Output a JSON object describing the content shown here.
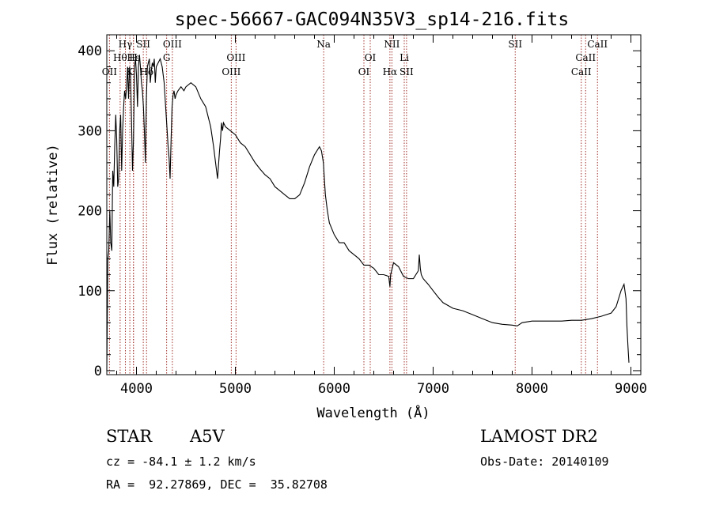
{
  "chart_data": {
    "type": "line",
    "title": "spec-56667-GAC094N35V3_sp14-216.fits",
    "xlabel": "Wavelength (Å)",
    "ylabel": "Flux (relative)",
    "xlim": [
      3700,
      9100
    ],
    "ylim": [
      -5,
      420
    ],
    "xticks": [
      4000,
      5000,
      6000,
      7000,
      8000,
      9000
    ],
    "yticks": [
      0,
      100,
      200,
      300,
      400
    ],
    "grid": false,
    "line_color": "#000000",
    "marker_color": "#a0302a",
    "series": [
      {
        "x": [
          3700,
          3710,
          3720,
          3730,
          3740,
          3750,
          3760,
          3770,
          3780,
          3790,
          3800,
          3810,
          3820,
          3830,
          3840,
          3850,
          3860,
          3870,
          3880,
          3890,
          3900,
          3910,
          3920,
          3930,
          3940,
          3950,
          3960,
          3970,
          3980,
          3990,
          4000,
          4010,
          4020,
          4030,
          4040,
          4050,
          4060,
          4070,
          4080,
          4090,
          4100,
          4110,
          4120,
          4130,
          4140,
          4150,
          4160,
          4170,
          4180,
          4190,
          4200,
          4220,
          4240,
          4260,
          4280,
          4300,
          4310,
          4320,
          4330,
          4340,
          4350,
          4360,
          4370,
          4380,
          4390,
          4400,
          4420,
          4450,
          4480,
          4500,
          4550,
          4600,
          4650,
          4700,
          4720,
          4750,
          4780,
          4800,
          4820,
          4840,
          4850,
          4855,
          4861,
          4865,
          4870,
          4880,
          4900,
          4950,
          5000,
          5050,
          5100,
          5150,
          5200,
          5250,
          5300,
          5350,
          5400,
          5450,
          5500,
          5550,
          5600,
          5650,
          5700,
          5750,
          5800,
          5850,
          5870,
          5890,
          5900,
          5910,
          5930,
          5950,
          6000,
          6050,
          6100,
          6150,
          6200,
          6250,
          6300,
          6350,
          6400,
          6450,
          6500,
          6550,
          6563,
          6570,
          6600,
          6650,
          6700,
          6750,
          6800,
          6850,
          6860,
          6870,
          6880,
          6900,
          6950,
          7000,
          7050,
          7100,
          7200,
          7300,
          7400,
          7500,
          7600,
          7700,
          7800,
          7850,
          7900,
          8000,
          8100,
          8200,
          8300,
          8400,
          8500,
          8600,
          8700,
          8800,
          8850,
          8900,
          8930,
          8950,
          8960,
          8970,
          8980
        ],
        "y": [
          0,
          140,
          150,
          200,
          160,
          150,
          250,
          230,
          280,
          320,
          290,
          230,
          240,
          300,
          320,
          250,
          300,
          330,
          350,
          340,
          355,
          380,
          340,
          380,
          370,
          310,
          250,
          290,
          380,
          390,
          370,
          330,
          380,
          395,
          380,
          360,
          350,
          330,
          300,
          260,
          340,
          380,
          385,
          390,
          360,
          375,
          385,
          380,
          390,
          360,
          380,
          385,
          390,
          380,
          360,
          320,
          300,
          280,
          265,
          240,
          290,
          330,
          345,
          350,
          340,
          345,
          350,
          355,
          350,
          355,
          360,
          355,
          340,
          330,
          320,
          305,
          280,
          260,
          240,
          275,
          290,
          300,
          310,
          305,
          300,
          310,
          305,
          300,
          295,
          285,
          280,
          270,
          260,
          252,
          245,
          240,
          230,
          225,
          220,
          215,
          215,
          220,
          235,
          255,
          270,
          280,
          275,
          260,
          240,
          220,
          200,
          185,
          170,
          160,
          160,
          150,
          145,
          140,
          132,
          132,
          128,
          120,
          120,
          118,
          105,
          120,
          135,
          130,
          118,
          115,
          115,
          125,
          145,
          128,
          120,
          115,
          108,
          100,
          92,
          85,
          78,
          75,
          70,
          65,
          60,
          58,
          57,
          56,
          60,
          62,
          62,
          62,
          62,
          63,
          63,
          65,
          68,
          72,
          80,
          100,
          108,
          90,
          55,
          30,
          10
        ]
      }
    ],
    "spectral_lines": [
      {
        "label": "Hγ",
        "x": 3888,
        "row": 0
      },
      {
        "label": "Hθ",
        "x": 3835,
        "row": 1
      },
      {
        "label": "OII",
        "x": 3727,
        "row": 2
      },
      {
        "label": "K",
        "x": 3933,
        "row": 2
      },
      {
        "label": "SII",
        "x": 4069,
        "row": 0
      },
      {
        "label": "H",
        "x": 3969,
        "row": 1
      },
      {
        "label": "Hδ",
        "x": 4102,
        "row": 2
      },
      {
        "label": "Hε",
        "x": 3970,
        "row": 1
      },
      {
        "label": "OIII",
        "x": 4363,
        "row": 0
      },
      {
        "label": "G",
        "x": 4305,
        "row": 1
      },
      {
        "label": "OIII",
        "x": 5007,
        "row": 1
      },
      {
        "label": "OIII",
        "x": 4959,
        "row": 2
      },
      {
        "label": "Na",
        "x": 5893,
        "row": 0
      },
      {
        "label": "OI",
        "x": 6364,
        "row": 1
      },
      {
        "label": "OI",
        "x": 6300,
        "row": 2
      },
      {
        "label": "NII",
        "x": 6583,
        "row": 0
      },
      {
        "label": "Hα",
        "x": 6563,
        "row": 2
      },
      {
        "label": "Li",
        "x": 6708,
        "row": 1
      },
      {
        "label": "SII",
        "x": 6731,
        "row": 2
      },
      {
        "label": "SII",
        "x": 7830,
        "row": 0
      },
      {
        "label": "CaII",
        "x": 8662,
        "row": 0
      },
      {
        "label": "CaII",
        "x": 8542,
        "row": 1
      },
      {
        "label": "CaII",
        "x": 8498,
        "row": 2
      }
    ]
  },
  "footer": {
    "object_type": "STAR",
    "spectral_class": "A5V",
    "survey": "LAMOST DR2",
    "cz": "cz = -84.1 ± 1.2 km/s",
    "obs_date": "Obs-Date: 20140109",
    "coords": "RA =  92.27869, DEC =  35.82708"
  }
}
